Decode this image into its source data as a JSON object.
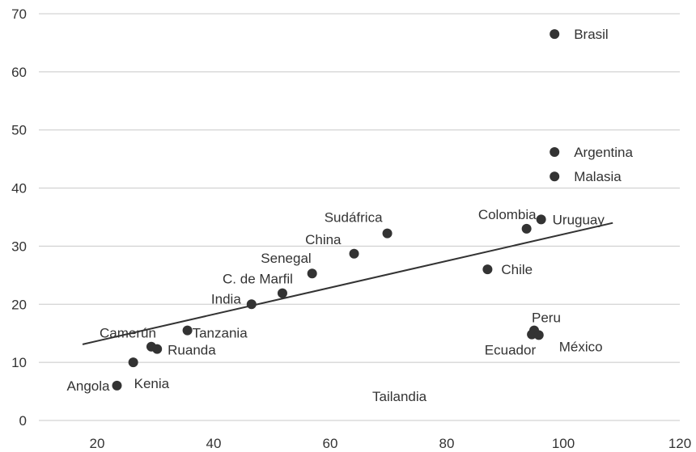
{
  "chart_data": {
    "type": "scatter",
    "title": "",
    "xlabel": "",
    "ylabel": "",
    "xlim": [
      10,
      120
    ],
    "ylim": [
      0,
      70
    ],
    "xticks": [
      20,
      40,
      60,
      80,
      100,
      120
    ],
    "yticks": [
      0,
      10,
      20,
      30,
      40,
      50,
      60,
      70
    ],
    "grid": "horizontal",
    "colors": {
      "points": "#333333",
      "trend": "#333333",
      "grid": "#c8c8c8",
      "text": "#333333"
    },
    "points": [
      {
        "label": "Brasil",
        "x": 98.5,
        "y": 66.5
      },
      {
        "label": "Argentina",
        "x": 98.5,
        "y": 46.2
      },
      {
        "label": "Malasia",
        "x": 98.5,
        "y": 42.0
      },
      {
        "label": "Uruguay",
        "x": 96.2,
        "y": 34.6
      },
      {
        "label": "Colombia",
        "x": 93.7,
        "y": 33.0
      },
      {
        "label": "Chile",
        "x": 87.0,
        "y": 26.0
      },
      {
        "label": "Sudáfrica",
        "x": 69.8,
        "y": 32.2
      },
      {
        "label": "China",
        "x": 64.1,
        "y": 28.7
      },
      {
        "label": "Senegal",
        "x": 56.9,
        "y": 25.3
      },
      {
        "label": "C. de Marfil",
        "x": 51.8,
        "y": 21.9
      },
      {
        "label": "India",
        "x": 46.5,
        "y": 20.0
      },
      {
        "label": "Tanzania",
        "x": 35.5,
        "y": 15.5
      },
      {
        "label": "Camerún",
        "x": 29.3,
        "y": 12.7
      },
      {
        "label": "Ruanda",
        "x": 30.3,
        "y": 12.3
      },
      {
        "label": "Kenia",
        "x": 26.2,
        "y": 10.0
      },
      {
        "label": "Angola",
        "x": 23.4,
        "y": 6.0
      },
      {
        "label": "Peru",
        "x": 95.0,
        "y": 15.5
      },
      {
        "label": "Ecuador",
        "x": 94.6,
        "y": 14.8
      },
      {
        "label": "México",
        "x": 95.8,
        "y": 14.7
      }
    ],
    "unplotted_labels": [
      "Tailandia"
    ],
    "trendline": {
      "x": [
        17.5,
        108.5
      ],
      "y": [
        13.1,
        34.0
      ]
    }
  }
}
